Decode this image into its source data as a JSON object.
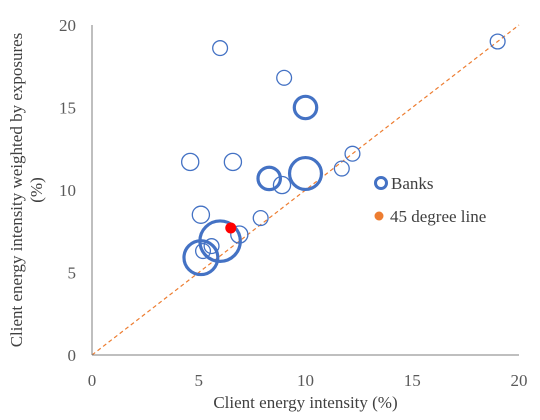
{
  "chart_data": {
    "type": "scatter",
    "title": "",
    "xlabel": "Client energy intensity (%)",
    "ylabel": "Client energy intensity weighted by exposures (%)",
    "xlim": [
      0,
      20
    ],
    "ylim": [
      0,
      20
    ],
    "x_ticks": [
      0,
      5,
      10,
      15,
      20
    ],
    "y_ticks": [
      0,
      5,
      10,
      15,
      20
    ],
    "grid": false,
    "legend_position": "right",
    "colors": {
      "banks": "#4472c4",
      "reference_point": "#ff0000",
      "line45": "#ed7d31",
      "axis": "#7f7f7f"
    },
    "series": [
      {
        "name": "Banks",
        "marker": "hollow-bubble",
        "points": [
          {
            "x": 6.0,
            "y": 18.6,
            "size": 1
          },
          {
            "x": 9.0,
            "y": 16.8,
            "size": 1
          },
          {
            "x": 19.0,
            "y": 19.0,
            "size": 1
          },
          {
            "x": 10.0,
            "y": 15.0,
            "size": 3
          },
          {
            "x": 4.6,
            "y": 11.7,
            "size": 1.5
          },
          {
            "x": 6.6,
            "y": 11.7,
            "size": 1.5
          },
          {
            "x": 12.2,
            "y": 12.2,
            "size": 1
          },
          {
            "x": 11.7,
            "y": 11.3,
            "size": 1
          },
          {
            "x": 8.3,
            "y": 10.7,
            "size": 3
          },
          {
            "x": 8.9,
            "y": 10.3,
            "size": 1.5
          },
          {
            "x": 10.0,
            "y": 11.0,
            "size": 7
          },
          {
            "x": 5.1,
            "y": 8.5,
            "size": 1.5
          },
          {
            "x": 7.9,
            "y": 8.3,
            "size": 1
          },
          {
            "x": 6.9,
            "y": 7.3,
            "size": 1.5
          },
          {
            "x": 5.6,
            "y": 6.6,
            "size": 1
          },
          {
            "x": 5.2,
            "y": 6.3,
            "size": 1
          },
          {
            "x": 6.0,
            "y": 6.9,
            "size": 12
          },
          {
            "x": 5.1,
            "y": 5.9,
            "size": 8
          }
        ]
      },
      {
        "name": "45 degree line",
        "marker": "dashed-line",
        "points": [
          {
            "x": 0,
            "y": 0
          },
          {
            "x": 20,
            "y": 20
          }
        ]
      }
    ],
    "highlight_point": {
      "x": 6.5,
      "y": 7.7,
      "color": "#ff0000"
    }
  }
}
